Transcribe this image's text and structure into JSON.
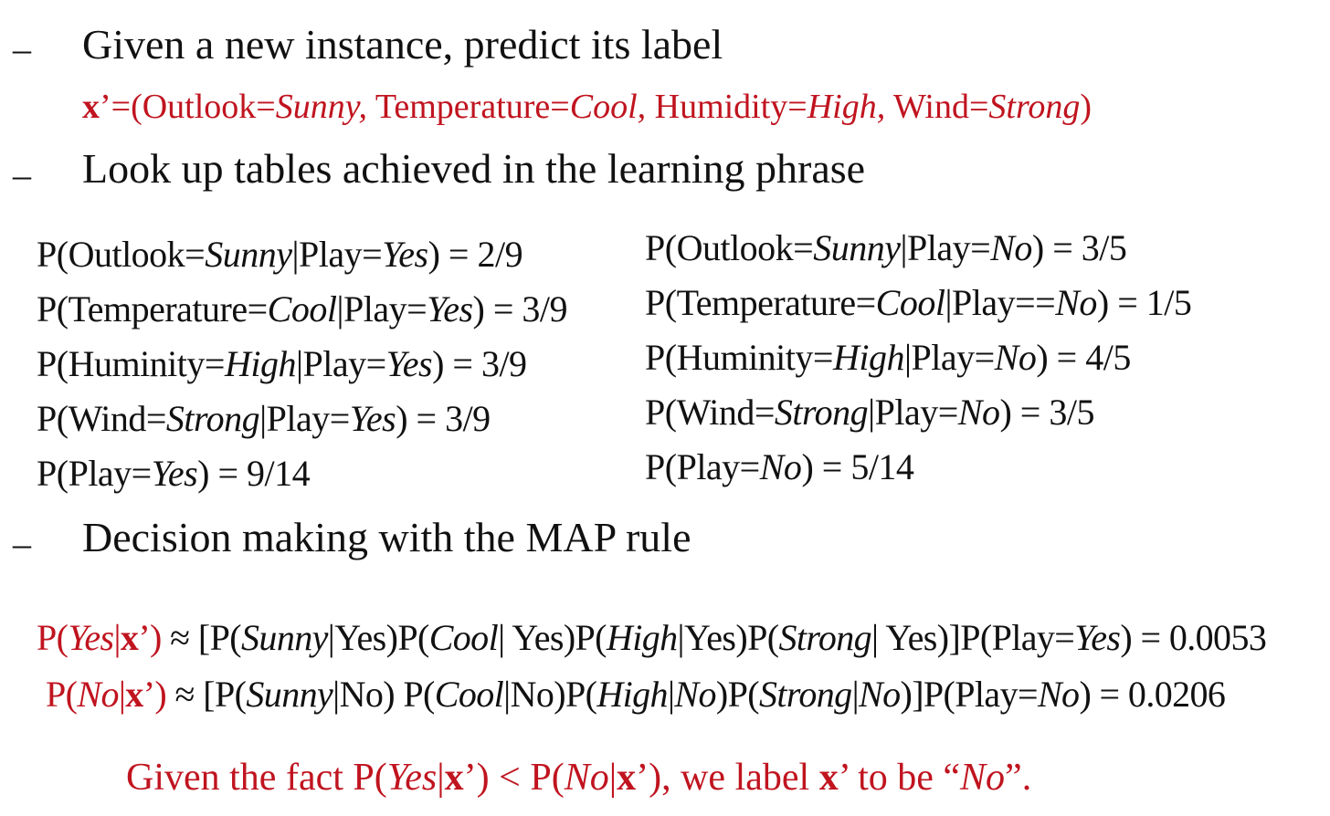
{
  "bullets": {
    "b1": "Given a new instance, predict its label",
    "b2": "Look up tables achieved in the learning phrase",
    "b3": "Decision making with the MAP rule",
    "dash": "–"
  },
  "instance": {
    "x": "x",
    "prime_eq": "’=(Outlook=",
    "sunny": "Sunny,",
    "temp": " Temperature=",
    "cool": "Cool,",
    "hum": " Humidity=",
    "high": "High,",
    "wind": " Wind=",
    "strong": "Strong",
    "close": ")"
  },
  "tables": {
    "left": [
      {
        "pre": "P(Outlook=",
        "val": "Sunny",
        "mid": "|Play=",
        "cls": "Yes",
        "post": ") = 2/9"
      },
      {
        "pre": "P(Temperature=",
        "val": "Cool",
        "mid": "|Play=",
        "cls": "Yes",
        "post": ") = 3/9"
      },
      {
        "pre": "P(Huminity=",
        "val": "High",
        "mid": "|Play=",
        "cls": "Yes",
        "post": ") = 3/9"
      },
      {
        "pre": "P(Wind=",
        "val": "Strong",
        "mid": "|Play=",
        "cls": "Yes",
        "post": ") = 3/9"
      },
      {
        "pre": "P(Play=",
        "cls": "Yes",
        "post": ") = 9/14"
      }
    ],
    "right": [
      {
        "pre": "P(Outlook=",
        "val": "Sunny",
        "mid": "|Play=",
        "cls": "No",
        "post": ") = 3/5"
      },
      {
        "pre": "P(Temperature=",
        "val": "Cool",
        "mid": "|Play==",
        "cls": "No",
        "post": ") = 1/5"
      },
      {
        "pre": "P(Huminity=",
        "val": "High",
        "mid": "|Play=",
        "cls": "No",
        "post": ") = 4/5"
      },
      {
        "pre": "P(Wind=",
        "val": "Strong",
        "mid": "|Play=",
        "cls": "No",
        "post": ") = 3/5"
      },
      {
        "pre": "P(Play=",
        "cls": "No",
        "post": ") = 5/14"
      }
    ]
  },
  "map": {
    "yes": {
      "p": "P(",
      "cls": "Yes",
      "bar": "|",
      "x": "x",
      "close": "’)",
      "rest_a": " ≈ [P(",
      "t1": "Sunny",
      "t1b": "|Yes)P(",
      "t2": "Cool",
      "t2b": "| Yes)P(",
      "t3": "High",
      "t3b": "|Yes)P(",
      "t4": "Strong",
      "t4b": "| Yes)]P(Play=",
      "t5": "Yes",
      "result": ") = 0.0053"
    },
    "no": {
      "p": "P(",
      "cls": "No",
      "bar": "|",
      "x": "x",
      "close": "’)",
      "rest_a": " ≈ [P(",
      "t1": "Sunny",
      "t1b": "|No) P(",
      "t2": "Cool",
      "t2b": "|No)P(",
      "t3": "High",
      "t3b": "|",
      "t3c": "No",
      "t3d": ")P(",
      "t4": "Strong",
      "t4b": "|",
      "t4c": "No",
      "t4d": ")]P(Play=",
      "t5": "No",
      "result": ") = 0.0206"
    }
  },
  "conclusion": {
    "a": "Given the fact P(",
    "yes": "Yes",
    "bar1": "|",
    "x1": "x",
    "b": "’) < P(",
    "no": "No",
    "bar2": "|",
    "x2": "x",
    "c": "’), we label ",
    "x3": "x",
    "d": "’ to be “",
    "label": "No",
    "e": "”."
  }
}
